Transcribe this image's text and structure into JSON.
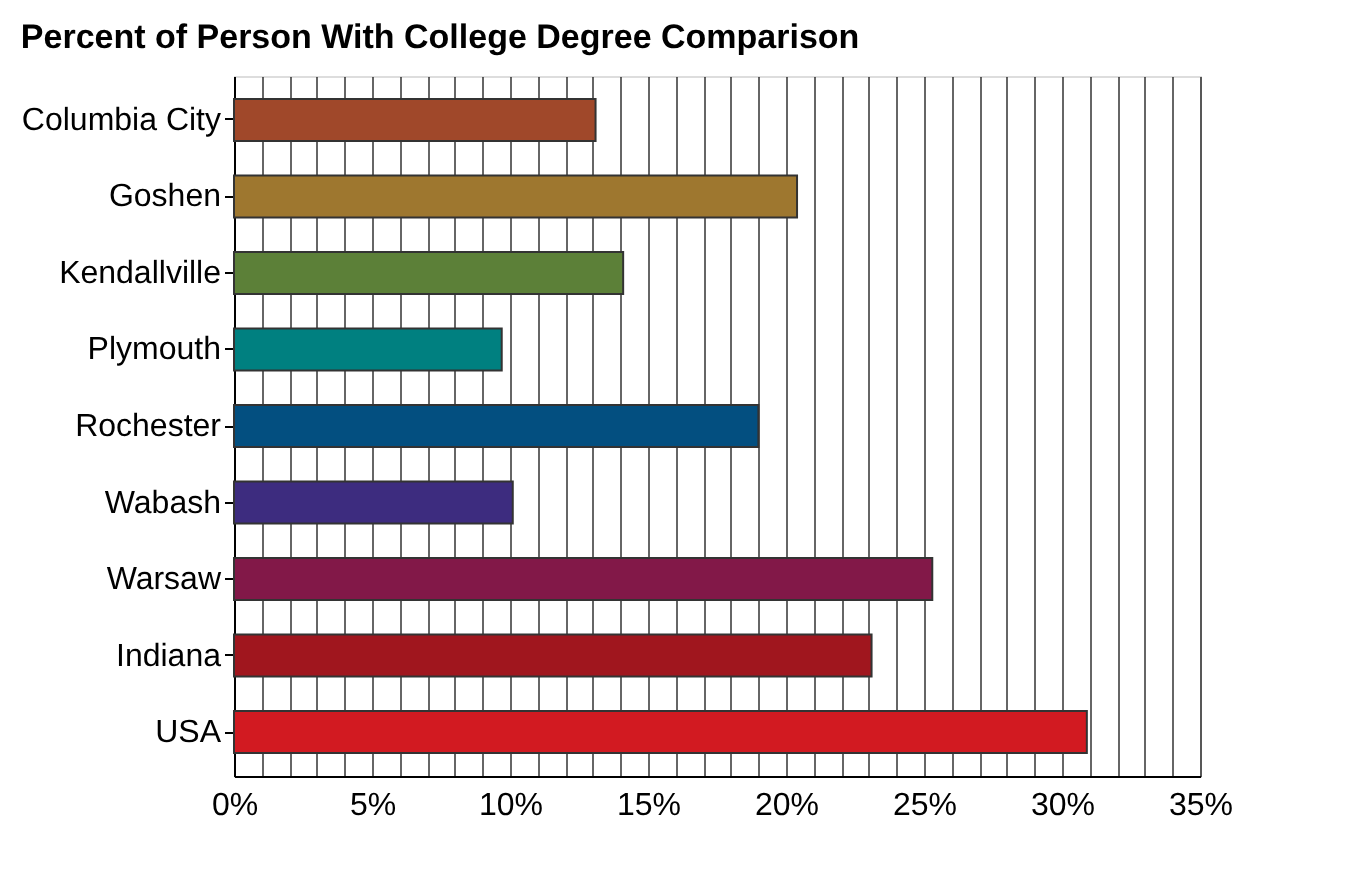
{
  "chart_data": {
    "type": "bar",
    "orientation": "horizontal",
    "title": "Percent of Person With College Degree Comparison",
    "categories": [
      "Columbia City",
      "Goshen",
      "Kendallville",
      "Plymouth",
      "Rochester",
      "Wabash",
      "Warsaw",
      "Indiana",
      "USA"
    ],
    "values": [
      13.1,
      20.4,
      14.1,
      9.7,
      19.0,
      10.1,
      25.3,
      23.1,
      30.9
    ],
    "colors": [
      "#a0482a",
      "#9e772f",
      "#5c8038",
      "#008080",
      "#034f80",
      "#3d2c7f",
      "#821848",
      "#a0161e",
      "#d21a21"
    ],
    "xlim": [
      0,
      35
    ],
    "xticks": [
      {
        "value": 0,
        "label": "0%"
      },
      {
        "value": 1,
        "label": null
      },
      {
        "value": 2,
        "label": null
      },
      {
        "value": 3,
        "label": null
      },
      {
        "value": 4,
        "label": null
      },
      {
        "value": 5,
        "label": "5%"
      },
      {
        "value": 6,
        "label": null
      },
      {
        "value": 7,
        "label": null
      },
      {
        "value": 8,
        "label": null
      },
      {
        "value": 9,
        "label": null
      },
      {
        "value": 10,
        "label": "10%"
      },
      {
        "value": 11,
        "label": null
      },
      {
        "value": 12,
        "label": null
      },
      {
        "value": 13,
        "label": null
      },
      {
        "value": 14,
        "label": null
      },
      {
        "value": 15,
        "label": "15%"
      },
      {
        "value": 16,
        "label": null
      },
      {
        "value": 17,
        "label": null
      },
      {
        "value": 18,
        "label": null
      },
      {
        "value": 19,
        "label": null
      },
      {
        "value": 20,
        "label": "20%"
      },
      {
        "value": 21,
        "label": null
      },
      {
        "value": 22,
        "label": null
      },
      {
        "value": 23,
        "label": null
      },
      {
        "value": 24,
        "label": null
      },
      {
        "value": 25,
        "label": "25%"
      },
      {
        "value": 26,
        "label": null
      },
      {
        "value": 27,
        "label": null
      },
      {
        "value": 28,
        "label": null
      },
      {
        "value": 29,
        "label": null
      },
      {
        "value": 30,
        "label": "30%"
      },
      {
        "value": 31,
        "label": null
      },
      {
        "value": 32,
        "label": null
      },
      {
        "value": 33,
        "label": null
      },
      {
        "value": 34,
        "label": null
      },
      {
        "value": 35,
        "label": "35%"
      }
    ],
    "grid": "x",
    "legend": false
  }
}
